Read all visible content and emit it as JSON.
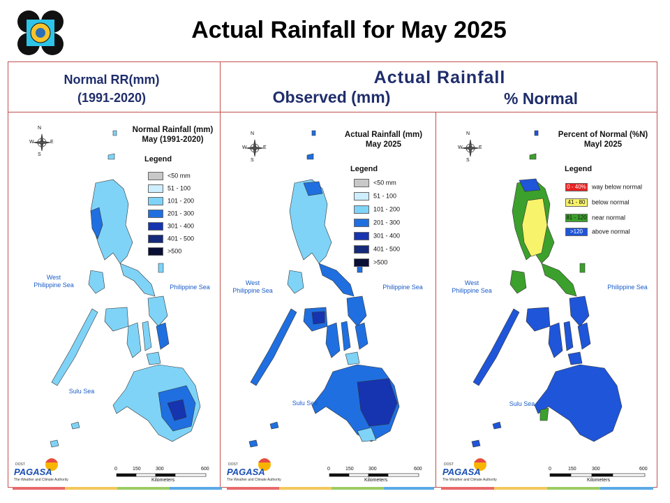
{
  "slide_title": "Actual Rainfall for May 2025",
  "header": {
    "normal_line1": "Normal RR(mm)",
    "normal_line2": "(1991-2020)",
    "actual": "Actual Rainfall",
    "observed": "Observed (mm)",
    "percent": "% Normal"
  },
  "panels": [
    {
      "title_line1": "Normal Rainfall (mm)",
      "title_line2": "May (1991-2020)",
      "legend_title": "Legend",
      "legend": [
        {
          "label": "<50 mm",
          "color": "#c8c8c8"
        },
        {
          "label": "51 - 100",
          "color": "#cdeefc"
        },
        {
          "label": "101 - 200",
          "color": "#7fd3f7"
        },
        {
          "label": "201 - 300",
          "color": "#1f6fe0"
        },
        {
          "label": "301 - 400",
          "color": "#1633b0"
        },
        {
          "label": "401 - 500",
          "color": "#152a7a"
        },
        {
          "label": ">500",
          "color": "#0a0f35"
        }
      ],
      "sea_west_1": "West",
      "sea_west_2": "Philippine Sea",
      "sea_east": "Philippine Sea",
      "sea_south": "Sulu Sea",
      "scale_ticks": [
        "0",
        "150",
        "300",
        "600"
      ],
      "scale_unit": "Kilometers",
      "compass": [
        "N",
        "E",
        "S",
        "W"
      ]
    },
    {
      "title_line1": "Actual Rainfall (mm)",
      "title_line2": "May 2025",
      "legend_title": "Legend",
      "legend": [
        {
          "label": "<50 mm",
          "color": "#c8c8c8"
        },
        {
          "label": "51 - 100",
          "color": "#cdeefc"
        },
        {
          "label": "101 - 200",
          "color": "#7fd3f7"
        },
        {
          "label": "201 - 300",
          "color": "#1f6fe0"
        },
        {
          "label": "301 - 400",
          "color": "#1633b0"
        },
        {
          "label": "401 - 500",
          "color": "#152a7a"
        },
        {
          "label": ">500",
          "color": "#0a0f35"
        }
      ],
      "sea_west_1": "West",
      "sea_west_2": "Philippine Sea",
      "sea_east": "Philippine Sea",
      "sea_south": "Sulu Sea",
      "scale_ticks": [
        "0",
        "150",
        "300",
        "600"
      ],
      "scale_unit": "Kilometers",
      "compass": [
        "N",
        "E",
        "S",
        "W"
      ]
    },
    {
      "title_line1": "Percent of Normal (%N)",
      "title_line2": "Mayl 2025",
      "legend_title": "Legend",
      "legend": [
        {
          "swatch": "0 - 40%",
          "label": "way below normal",
          "color": "#e82020"
        },
        {
          "swatch": "41 - 80",
          "label": "below normal",
          "color": "#f7f36a"
        },
        {
          "swatch": "81 - 120",
          "label": "near normal",
          "color": "#3ca02c"
        },
        {
          "swatch": ">120",
          "label": "above normal",
          "color": "#1f55d8"
        }
      ],
      "sea_west_1": "West",
      "sea_west_2": "Philippine Sea",
      "sea_east": "Philippine Sea",
      "sea_south": "Sulu Sea",
      "scale_ticks": [
        "0",
        "150",
        "300",
        "600"
      ],
      "scale_unit": "Kilometers",
      "compass": [
        "N",
        "E",
        "S",
        "W"
      ]
    }
  ],
  "branding": {
    "name": "PAGASA",
    "top": "DOST",
    "sub": "The Weather and Climate Authority"
  },
  "colors": {
    "frame": "#c0504d",
    "header_text": "#1f2d6b",
    "sea_label": "#1a5cc8",
    "footer_bar": [
      "#e8696b",
      "#f2c85b",
      "#9ccc65",
      "#5aa9e6"
    ]
  }
}
